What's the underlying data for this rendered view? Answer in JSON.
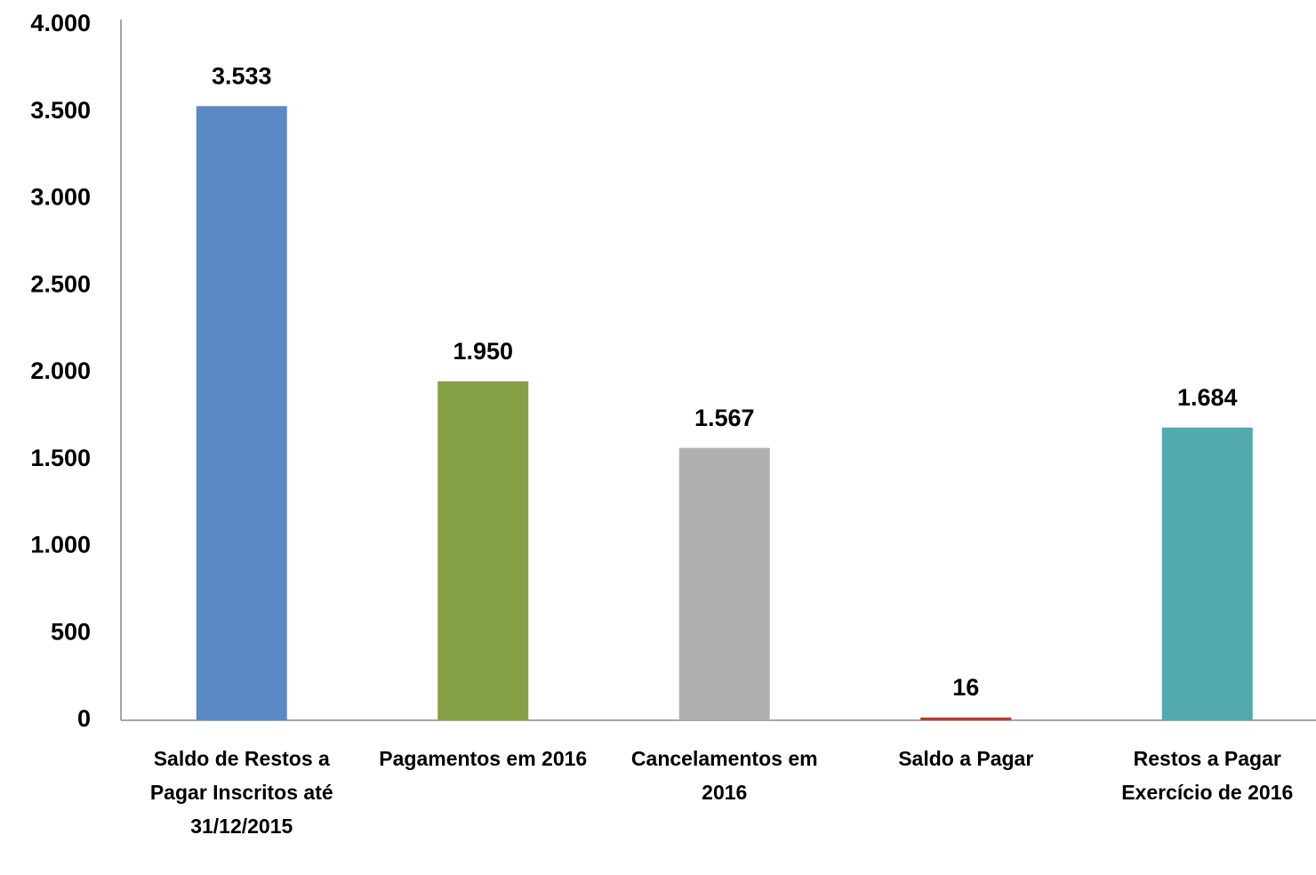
{
  "chart_data": {
    "type": "bar",
    "categories": [
      "Saldo de Restos a Pagar Inscritos até 31/12/2015",
      "Pagamentos em 2016",
      "Cancelamentos em 2016",
      "Saldo a Pagar",
      "Restos a Pagar Exercício de 2016"
    ],
    "values": [
      3533,
      1950,
      1567,
      16,
      1684
    ],
    "value_labels": [
      "3.533",
      "1.950",
      "1.567",
      "16",
      "1.684"
    ],
    "colors": [
      "#5a8ac6",
      "#86a046",
      "#b0b0b0",
      "#c0392b",
      "#52a9ae"
    ],
    "ylim": [
      0,
      4000
    ],
    "yticks": [
      0,
      500,
      {
        "value": 1000,
        "label": "1.000"
      },
      {
        "value": 1500,
        "label": "1.500"
      },
      {
        "value": 2000,
        "label": "2.000"
      },
      {
        "value": 2500,
        "label": "2.500"
      },
      {
        "value": 3000,
        "label": "3.000"
      },
      {
        "value": 3500,
        "label": "3.500"
      },
      {
        "value": 4000,
        "label": "4.000"
      }
    ],
    "grid": false
  }
}
